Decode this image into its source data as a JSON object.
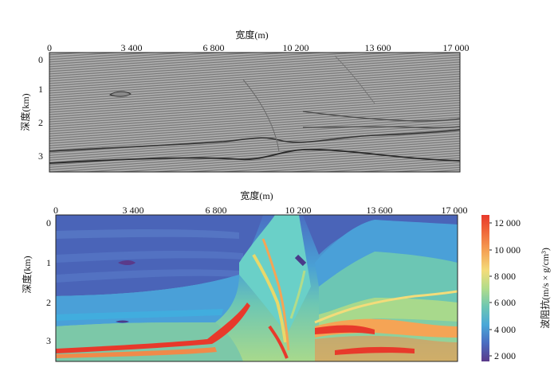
{
  "top_panel": {
    "x_axis_title": "宽度(m)",
    "y_axis_title": "深度(km)",
    "x_ticks": [
      "0",
      "3 400",
      "6 800",
      "10 200",
      "13 600",
      "17 000"
    ],
    "y_ticks": [
      "0",
      "1",
      "2",
      "3"
    ],
    "background": "#9a9a9a"
  },
  "bottom_panel": {
    "x_axis_title": "宽度(m)",
    "y_axis_title": "深度(km)",
    "x_ticks": [
      "0",
      "3 400",
      "6 800",
      "10 200",
      "13 600",
      "17 000"
    ],
    "y_ticks": [
      "0",
      "1",
      "2",
      "3"
    ]
  },
  "colorbar": {
    "title": "波阻抗(m/s × g/cm³)",
    "ticks": [
      "12 000",
      "10 000",
      "8 000",
      "6 000",
      "4 000",
      "2 000"
    ],
    "colors": [
      "#e8392b",
      "#f59a4a",
      "#f5e07a",
      "#a8d98c",
      "#6cc6b4",
      "#4aa8d8",
      "#4a70c4",
      "#5a3a8a"
    ]
  }
}
